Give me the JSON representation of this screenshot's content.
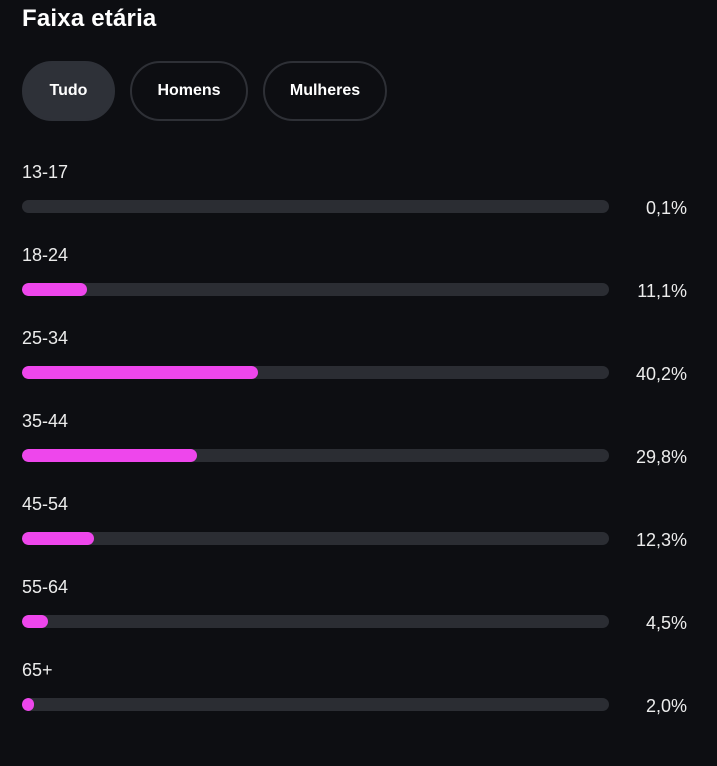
{
  "header": {
    "title": "Faixa etária"
  },
  "filters": [
    {
      "label": "Tudo",
      "selected": true
    },
    {
      "label": "Homens",
      "selected": false
    },
    {
      "label": "Mulheres",
      "selected": false
    }
  ],
  "colors": {
    "bar_fill": "#ee46ec",
    "bar_track": "#2b2d33",
    "background": "#0d0e12"
  },
  "age_groups": [
    {
      "label": "13-17",
      "percent_text": "0,1%",
      "value": 0.1
    },
    {
      "label": "18-24",
      "percent_text": "11,1%",
      "value": 11.1
    },
    {
      "label": "25-34",
      "percent_text": "40,2%",
      "value": 40.2
    },
    {
      "label": "35-44",
      "percent_text": "29,8%",
      "value": 29.8
    },
    {
      "label": "45-54",
      "percent_text": "12,3%",
      "value": 12.3
    },
    {
      "label": "55-64",
      "percent_text": "4,5%",
      "value": 4.5
    },
    {
      "label": "65+",
      "percent_text": "2,0%",
      "value": 2.0
    }
  ]
}
